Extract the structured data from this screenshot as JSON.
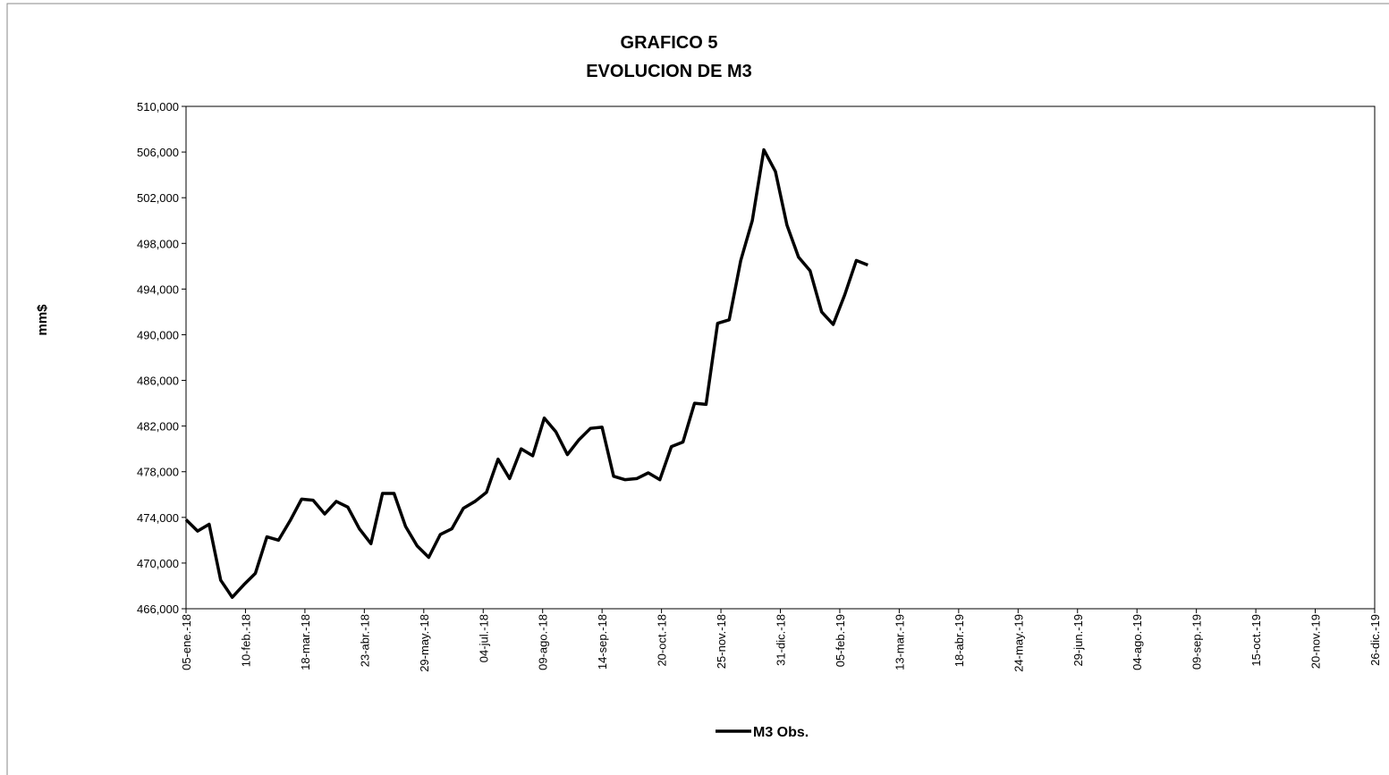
{
  "chart_data": {
    "type": "line",
    "title": "GRAFICO 5",
    "subtitle": "EVOLUCION  DE M3",
    "y_label": "mm$",
    "x": [
      "2018-01-05",
      "2018-01-12",
      "2018-01-19",
      "2018-01-26",
      "2018-02-02",
      "2018-02-09",
      "2018-02-16",
      "2018-02-23",
      "2018-03-02",
      "2018-03-09",
      "2018-03-16",
      "2018-03-23",
      "2018-03-30",
      "2018-04-06",
      "2018-04-13",
      "2018-04-20",
      "2018-04-27",
      "2018-05-04",
      "2018-05-11",
      "2018-05-18",
      "2018-05-25",
      "2018-06-01",
      "2018-06-08",
      "2018-06-15",
      "2018-06-22",
      "2018-06-29",
      "2018-07-06",
      "2018-07-13",
      "2018-07-20",
      "2018-07-27",
      "2018-08-03",
      "2018-08-10",
      "2018-08-17",
      "2018-08-24",
      "2018-08-31",
      "2018-09-07",
      "2018-09-14",
      "2018-09-21",
      "2018-09-28",
      "2018-10-05",
      "2018-10-12",
      "2018-10-19",
      "2018-10-26",
      "2018-11-02",
      "2018-11-09",
      "2018-11-16",
      "2018-11-23",
      "2018-11-30",
      "2018-12-07",
      "2018-12-14",
      "2018-12-21",
      "2018-12-28",
      "2019-01-04",
      "2019-01-11",
      "2019-01-18",
      "2019-01-25",
      "2019-02-01",
      "2019-02-08",
      "2019-02-15",
      "2019-02-22"
    ],
    "series": [
      {
        "name": "M3 Obs.",
        "color": "#000000",
        "values": [
          473800,
          472800,
          473400,
          468500,
          467000,
          468100,
          469100,
          472300,
          472000,
          473700,
          475600,
          475500,
          474300,
          475400,
          474900,
          473000,
          471700,
          476100,
          476100,
          473200,
          471500,
          470500,
          472500,
          473000,
          474800,
          475400,
          476200,
          479100,
          477400,
          480000,
          479400,
          482700,
          481500,
          479500,
          480800,
          481800,
          481900,
          477600,
          477300,
          477400,
          477900,
          477300,
          480200,
          480600,
          484000,
          483900,
          491000,
          491300,
          496500,
          500000,
          506200,
          504300,
          499600,
          496800,
          495600,
          492000,
          490900,
          493500,
          496500,
          496100
        ]
      }
    ],
    "xlim": [
      "2018-01-05",
      "2019-12-26"
    ],
    "xticks": [
      {
        "value": "2018-01-05",
        "label": "05-ene.-18"
      },
      {
        "value": "2018-02-10",
        "label": "10-feb.-18"
      },
      {
        "value": "2018-03-18",
        "label": "18-mar.-18"
      },
      {
        "value": "2018-04-23",
        "label": "23-abr.-18"
      },
      {
        "value": "2018-05-29",
        "label": "29-may.-18"
      },
      {
        "value": "2018-07-04",
        "label": "04-jul.-18"
      },
      {
        "value": "2018-08-09",
        "label": "09-ago.-18"
      },
      {
        "value": "2018-09-14",
        "label": "14-sep.-18"
      },
      {
        "value": "2018-10-20",
        "label": "20-oct.-18"
      },
      {
        "value": "2018-11-25",
        "label": "25-nov.-18"
      },
      {
        "value": "2018-12-31",
        "label": "31-dic.-18"
      },
      {
        "value": "2019-02-05",
        "label": "05-feb.-19"
      },
      {
        "value": "2019-03-13",
        "label": "13-mar.-19"
      },
      {
        "value": "2019-04-18",
        "label": "18-abr.-19"
      },
      {
        "value": "2019-05-24",
        "label": "24-may.-19"
      },
      {
        "value": "2019-06-29",
        "label": "29-jun.-19"
      },
      {
        "value": "2019-08-04",
        "label": "04-ago.-19"
      },
      {
        "value": "2019-09-09",
        "label": "09-sep.-19"
      },
      {
        "value": "2019-10-15",
        "label": "15-oct.-19"
      },
      {
        "value": "2019-11-20",
        "label": "20-nov.-19"
      },
      {
        "value": "2019-12-26",
        "label": "26-dic.-19"
      }
    ],
    "ylim": [
      466000,
      510000
    ],
    "yticks": [
      {
        "value": 466000,
        "label": "466,000"
      },
      {
        "value": 470000,
        "label": "470,000"
      },
      {
        "value": 474000,
        "label": "474,000"
      },
      {
        "value": 478000,
        "label": "478,000"
      },
      {
        "value": 482000,
        "label": "482,000"
      },
      {
        "value": 486000,
        "label": "486,000"
      },
      {
        "value": 490000,
        "label": "490,000"
      },
      {
        "value": 494000,
        "label": "494,000"
      },
      {
        "value": 498000,
        "label": "498,000"
      },
      {
        "value": 502000,
        "label": "502,000"
      },
      {
        "value": 506000,
        "label": "506,000"
      },
      {
        "value": 510000,
        "label": "510,000"
      }
    ],
    "legend": "bottom"
  }
}
